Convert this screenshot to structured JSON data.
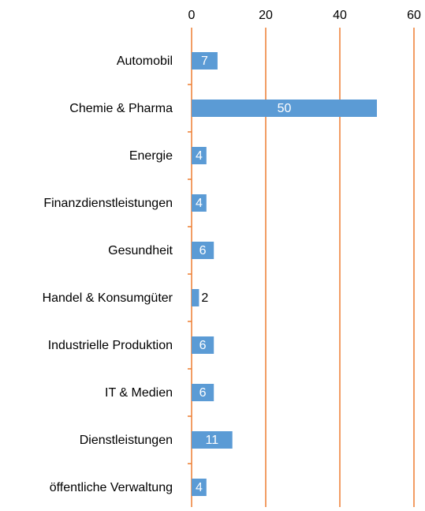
{
  "chart_data": {
    "type": "bar",
    "orientation": "horizontal",
    "categories": [
      "Automobil",
      "Chemie & Pharma",
      "Energie",
      "Finanzdienstleistungen",
      "Gesundheit",
      "Handel & Konsumgüter",
      "Industrielle Produktion",
      "IT & Medien",
      "Dienstleistungen",
      "öffentliche Verwaltung"
    ],
    "values": [
      7,
      50,
      4,
      4,
      6,
      2,
      6,
      6,
      11,
      4
    ],
    "color": "#5b9bd5",
    "grid_color": "#ed7d31",
    "xlim": [
      0,
      60
    ],
    "xticks": [
      0,
      20,
      40,
      60
    ],
    "grid": true
  }
}
